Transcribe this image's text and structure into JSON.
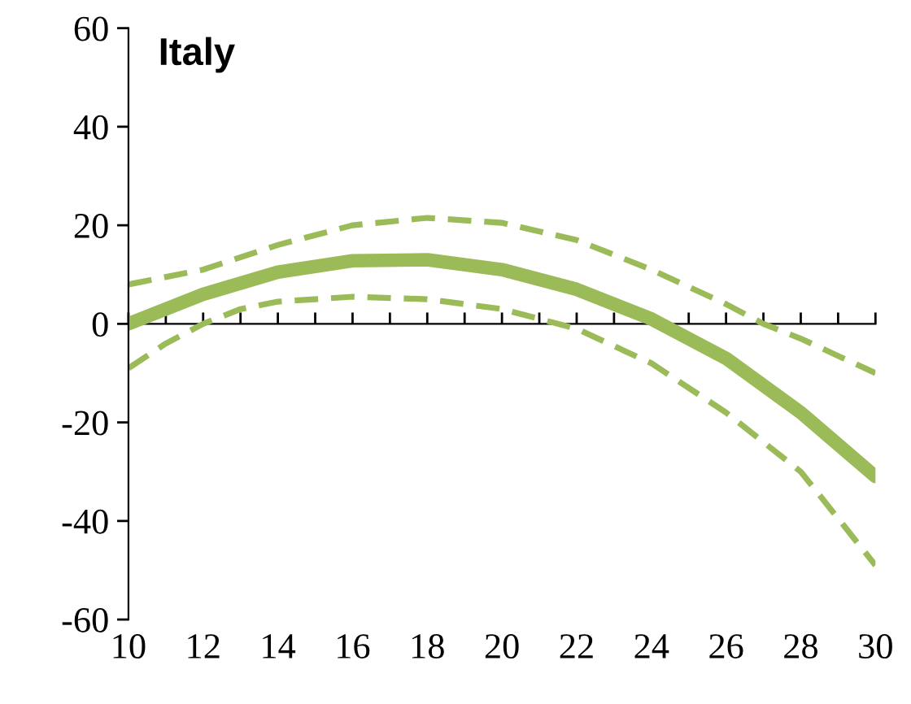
{
  "chart_data": {
    "type": "line",
    "title": "Italy",
    "xlim": [
      10,
      30
    ],
    "ylim": [
      -60,
      60
    ],
    "xticks": [
      10,
      {
        "value": 11,
        "label": null
      },
      12,
      {
        "value": 13,
        "label": null
      },
      14,
      {
        "value": 15,
        "label": null
      },
      16,
      {
        "value": 17,
        "label": null
      },
      18,
      {
        "value": 19,
        "label": null
      },
      20,
      {
        "value": 21,
        "label": null
      },
      22,
      {
        "value": 23,
        "label": null
      },
      24,
      {
        "value": 25,
        "label": null
      },
      26,
      {
        "value": 27,
        "label": null
      },
      28,
      {
        "value": 29,
        "label": null
      },
      30
    ],
    "yticks": [
      -60,
      -40,
      -20,
      0,
      20,
      40,
      60
    ],
    "legend": false,
    "marker": "none",
    "series": [
      {
        "color": "#9bbb59",
        "line_style": "solid",
        "x": [
          10,
          12,
          14,
          16,
          18,
          20,
          22,
          24,
          26,
          28,
          30
        ],
        "values": [
          0,
          6,
          10.5,
          12.8,
          13,
          11,
          7,
          1,
          -7,
          -18,
          -31
        ]
      },
      {
        "color": "#9bbb59",
        "line_style": "dashed",
        "x": [
          10,
          11,
          12,
          13,
          14,
          16,
          18,
          20,
          22,
          24,
          26,
          28,
          30
        ],
        "values": [
          -9,
          -4,
          0,
          3,
          4.5,
          5.5,
          5,
          3,
          -1,
          -8,
          -18,
          -30,
          -49
        ]
      },
      {
        "color": "#9bbb59",
        "line_style": "dashed",
        "x": [
          10,
          12,
          14,
          16,
          18,
          20,
          22,
          24,
          26,
          27,
          28,
          30
        ],
        "values": [
          8,
          11,
          16,
          20,
          21.5,
          20.5,
          17,
          11,
          4,
          0,
          -3,
          -10
        ]
      }
    ]
  }
}
